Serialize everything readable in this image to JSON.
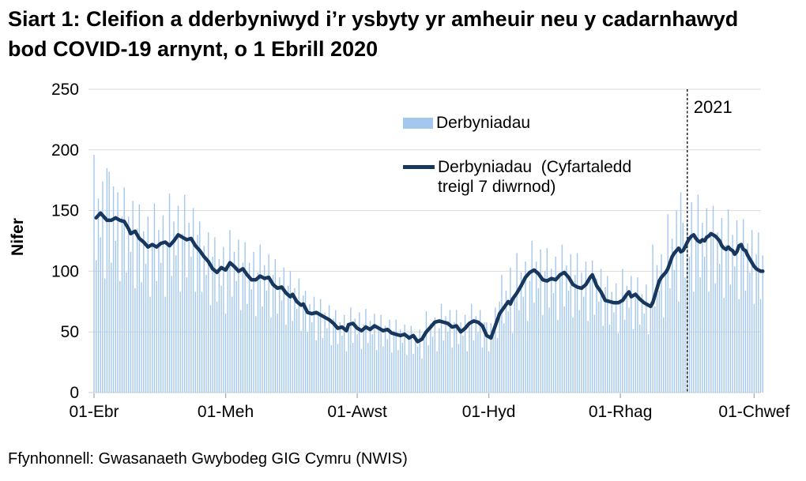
{
  "title": "Siart 1: Cleifion a dderbyniwyd i’r ysbyty yr amheuir neu y cadarnhawyd bod COVID-19 arnynt, o 1 Ebrill 2020",
  "source": "Ffynhonnell: Gwasanaeth Gwybodeg GIG Cymru (NWIS)",
  "legend": {
    "bars_label": "Derbyniadau",
    "line_label": "Derbyniadau  (Cyfartaledd treigl 7 diwrnod)"
  },
  "chart_data": {
    "type": "bar",
    "title": "Siart 1: Cleifion a dderbyniwyd i’r ysbyty yr amheuir neu y cadarnhawyd bod COVID-19 arnynt, o 1 Ebrill 2020",
    "xlabel": "",
    "ylabel": "Nifer",
    "ylim": [
      0,
      250
    ],
    "yticks": [
      0,
      50,
      100,
      150,
      200,
      250
    ],
    "grid": "horizontal",
    "legend_position": "top-center-inside",
    "x_unit": "days since 1 April 2020",
    "xticks": [
      {
        "day": 0,
        "label": "01-Ebr"
      },
      {
        "day": 61,
        "label": "01-Meh"
      },
      {
        "day": 122,
        "label": "01-Awst"
      },
      {
        "day": 183,
        "label": "01-Hyd"
      },
      {
        "day": 244,
        "label": "01-Rhag"
      },
      {
        "day": 306,
        "label": "01-Chwef"
      }
    ],
    "annotation": {
      "label": "2021",
      "day": 275
    },
    "colors": {
      "bars": "#A3C7EE",
      "line": "#17375E",
      "grid": "#D9D9D9",
      "axis": "#C9C9C9",
      "ticks": "#ABABAB",
      "annotation_line": "#000000"
    },
    "series": [
      {
        "name": "Derbyniadau",
        "type": "bar",
        "values": [
          196,
          109,
          160,
          128,
          174,
          94,
          185,
          182,
          107,
          170,
          125,
          165,
          92,
          145,
          169,
          99,
          145,
          116,
          158,
          86,
          135,
          155,
          91,
          133,
          106,
          145,
          79,
          123,
          156,
          92,
          134,
          107,
          146,
          79,
          124,
          164,
          96,
          141,
          113,
          154,
          83,
          131,
          163,
          95,
          140,
          112,
          152,
          83,
          130,
          141,
          83,
          121,
          97,
          132,
          72,
          112,
          128,
          75,
          110,
          88,
          120,
          65,
          102,
          134,
          79,
          116,
          92,
          126,
          68,
          107,
          124,
          73,
          107,
          85,
          116,
          63,
          99,
          122,
          71,
          105,
          84,
          114,
          62,
          97,
          110,
          65,
          95,
          76,
          103,
          56,
          88,
          100,
          59,
          86,
          69,
          94,
          51,
          80,
          84,
          50,
          73,
          58,
          79,
          43,
          67,
          77,
          45,
          66,
          53,
          72,
          39,
          61,
          68,
          40,
          58,
          47,
          64,
          34,
          54,
          70,
          41,
          61,
          48,
          66,
          36,
          56,
          69,
          41,
          59,
          48,
          65,
          35,
          55,
          64,
          38,
          55,
          44,
          60,
          33,
          51,
          60,
          35,
          52,
          41,
          56,
          31,
          48,
          55,
          32,
          47,
          38,
          52,
          28,
          44,
          67,
          39,
          57,
          46,
          62,
          34,
          53,
          73,
          43,
          63,
          50,
          68,
          37,
          58,
          68,
          40,
          58,
          47,
          64,
          34,
          54,
          73,
          43,
          63,
          50,
          68,
          37,
          58,
          58,
          34,
          57,
          50,
          70,
          45,
          75,
          97,
          57,
          84,
          67,
          103,
          49,
          78,
          115,
          68,
          99,
          79,
          108,
          59,
          92,
          125,
          74,
          108,
          86,
          118,
          64,
          100,
          119,
          70,
          102,
          82,
          112,
          60,
          95,
          122,
          71,
          105,
          84,
          114,
          62,
          97,
          115,
          68,
          99,
          79,
          108,
          59,
          92,
          109,
          64,
          94,
          75,
          102,
          55,
          87,
          96,
          56,
          83,
          66,
          90,
          49,
          77,
          102,
          60,
          88,
          70,
          96,
          52,
          82,
          95,
          56,
          81,
          65,
          89,
          48,
          75,
          122,
          71,
          105,
          84,
          114,
          62,
          97,
          147,
          86,
          127,
          101,
          150,
          75,
          165,
          140,
          95,
          140,
          112,
          157,
          83,
          130,
          163,
          95,
          140,
          112,
          152,
          83,
          130,
          154,
          90,
          132,
          106,
          144,
          78,
          122,
          151,
          89,
          130,
          104,
          142,
          77,
          120,
          143,
          84,
          123,
          99,
          134,
          73,
          114,
          132,
          77,
          113
        ]
      },
      {
        "name": "Derbyniadau  (Cyfartaledd treigl 7 diwrnod)",
        "type": "line",
        "points": [
          [
            1,
            144
          ],
          [
            3,
            148
          ],
          [
            4,
            146
          ],
          [
            6,
            142
          ],
          [
            8,
            142
          ],
          [
            10,
            144
          ],
          [
            12,
            142
          ],
          [
            14,
            141
          ],
          [
            16,
            135
          ],
          [
            17,
            131
          ],
          [
            19,
            133
          ],
          [
            21,
            127
          ],
          [
            23,
            124
          ],
          [
            25,
            120
          ],
          [
            27,
            122
          ],
          [
            29,
            120
          ],
          [
            31,
            123
          ],
          [
            33,
            124
          ],
          [
            35,
            121
          ],
          [
            37,
            125
          ],
          [
            39,
            130
          ],
          [
            41,
            128
          ],
          [
            43,
            126
          ],
          [
            45,
            127
          ],
          [
            47,
            121
          ],
          [
            49,
            117
          ],
          [
            51,
            112
          ],
          [
            53,
            108
          ],
          [
            55,
            102
          ],
          [
            57,
            99
          ],
          [
            59,
            103
          ],
          [
            61,
            101
          ],
          [
            63,
            107
          ],
          [
            65,
            104
          ],
          [
            67,
            100
          ],
          [
            69,
            102
          ],
          [
            71,
            97
          ],
          [
            73,
            93
          ],
          [
            75,
            93
          ],
          [
            77,
            96
          ],
          [
            79,
            94
          ],
          [
            81,
            95
          ],
          [
            83,
            89
          ],
          [
            85,
            86
          ],
          [
            87,
            87
          ],
          [
            89,
            82
          ],
          [
            91,
            79
          ],
          [
            92,
            81
          ],
          [
            94,
            75
          ],
          [
            96,
            72
          ],
          [
            97,
            73
          ],
          [
            99,
            66
          ],
          [
            101,
            65
          ],
          [
            103,
            66
          ],
          [
            105,
            64
          ],
          [
            107,
            62
          ],
          [
            109,
            60
          ],
          [
            111,
            57
          ],
          [
            113,
            53
          ],
          [
            115,
            54
          ],
          [
            117,
            51
          ],
          [
            118,
            56
          ],
          [
            120,
            57
          ],
          [
            122,
            53
          ],
          [
            124,
            51
          ],
          [
            126,
            54
          ],
          [
            128,
            52
          ],
          [
            130,
            55
          ],
          [
            132,
            53
          ],
          [
            134,
            51
          ],
          [
            136,
            52
          ],
          [
            138,
            49
          ],
          [
            140,
            48
          ],
          [
            142,
            47
          ],
          [
            144,
            48
          ],
          [
            146,
            45
          ],
          [
            148,
            47
          ],
          [
            150,
            42
          ],
          [
            152,
            44
          ],
          [
            154,
            50
          ],
          [
            156,
            54
          ],
          [
            158,
            58
          ],
          [
            160,
            59
          ],
          [
            162,
            58
          ],
          [
            164,
            57
          ],
          [
            166,
            54
          ],
          [
            168,
            55
          ],
          [
            170,
            50
          ],
          [
            172,
            53
          ],
          [
            174,
            57
          ],
          [
            176,
            59
          ],
          [
            178,
            58
          ],
          [
            180,
            55
          ],
          [
            182,
            47
          ],
          [
            184,
            45
          ],
          [
            186,
            55
          ],
          [
            188,
            65
          ],
          [
            190,
            70
          ],
          [
            192,
            75
          ],
          [
            193,
            73
          ],
          [
            194,
            77
          ],
          [
            196,
            82
          ],
          [
            198,
            88
          ],
          [
            200,
            95
          ],
          [
            202,
            99
          ],
          [
            204,
            101
          ],
          [
            206,
            98
          ],
          [
            208,
            93
          ],
          [
            210,
            92
          ],
          [
            212,
            94
          ],
          [
            214,
            93
          ],
          [
            216,
            97
          ],
          [
            218,
            99
          ],
          [
            220,
            95
          ],
          [
            222,
            89
          ],
          [
            224,
            87
          ],
          [
            226,
            86
          ],
          [
            228,
            89
          ],
          [
            230,
            95
          ],
          [
            231,
            97
          ],
          [
            233,
            88
          ],
          [
            235,
            83
          ],
          [
            237,
            76
          ],
          [
            239,
            75
          ],
          [
            241,
            74
          ],
          [
            243,
            74
          ],
          [
            245,
            76
          ],
          [
            247,
            81
          ],
          [
            248,
            83
          ],
          [
            249,
            79
          ],
          [
            251,
            81
          ],
          [
            253,
            77
          ],
          [
            255,
            74
          ],
          [
            257,
            72
          ],
          [
            258,
            71
          ],
          [
            259,
            74
          ],
          [
            260,
            80
          ],
          [
            261,
            86
          ],
          [
            262,
            92
          ],
          [
            263,
            95
          ],
          [
            264,
            97
          ],
          [
            265,
            99
          ],
          [
            266,
            102
          ],
          [
            267,
            107
          ],
          [
            268,
            112
          ],
          [
            269,
            115
          ],
          [
            270,
            117
          ],
          [
            271,
            119
          ],
          [
            272,
            116
          ],
          [
            273,
            117
          ],
          [
            274,
            120
          ],
          [
            275,
            124
          ],
          [
            276,
            127
          ],
          [
            277,
            129
          ],
          [
            278,
            130
          ],
          [
            279,
            127
          ],
          [
            280,
            125
          ],
          [
            281,
            124
          ],
          [
            282,
            126
          ],
          [
            283,
            125
          ],
          [
            284,
            128
          ],
          [
            285,
            129
          ],
          [
            286,
            131
          ],
          [
            287,
            130
          ],
          [
            288,
            129
          ],
          [
            289,
            127
          ],
          [
            290,
            125
          ],
          [
            291,
            121
          ],
          [
            292,
            119
          ],
          [
            293,
            118
          ],
          [
            294,
            120
          ],
          [
            295,
            118
          ],
          [
            296,
            117
          ],
          [
            297,
            114
          ],
          [
            298,
            116
          ],
          [
            299,
            121
          ],
          [
            300,
            122
          ],
          [
            301,
            118
          ],
          [
            302,
            117
          ],
          [
            303,
            113
          ],
          [
            304,
            110
          ],
          [
            305,
            107
          ],
          [
            306,
            104
          ],
          [
            307,
            102
          ],
          [
            308,
            101
          ],
          [
            309,
            100
          ],
          [
            310,
            100
          ]
        ]
      }
    ]
  }
}
